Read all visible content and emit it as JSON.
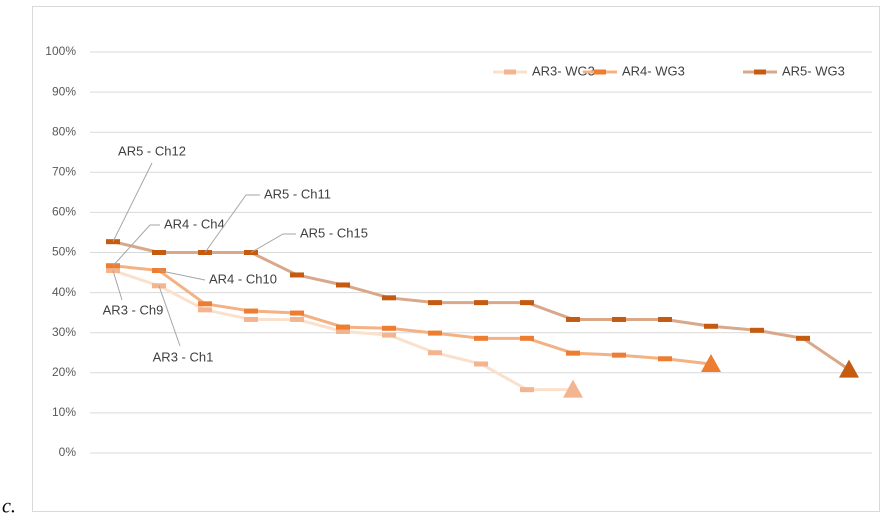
{
  "figure_label": "c.",
  "chart_data": {
    "type": "line",
    "categories": [
      null,
      null,
      null,
      null,
      null,
      null,
      null,
      null,
      null,
      null,
      null,
      null,
      null,
      null,
      null,
      null,
      null
    ],
    "series": [
      {
        "name": "AR3- WG3",
        "color": "#fbe0cc",
        "marker_color": "#f2b590",
        "values": [
          45.5,
          41.7,
          35.7,
          33.3,
          33.3,
          30.3,
          29.4,
          25,
          22.2,
          15.8,
          15.8,
          null,
          null,
          null,
          null,
          null,
          null
        ]
      },
      {
        "name": "AR4- WG3",
        "color": "#f4b183",
        "marker_color": "#ed7d31",
        "values": [
          46.7,
          45.5,
          37.2,
          35.4,
          34.9,
          31.4,
          31.1,
          29.9,
          28.6,
          28.6,
          24.9,
          24.4,
          23.5,
          22.2,
          null,
          null,
          null
        ]
      },
      {
        "name": "AR5- WG3",
        "color": "#d9a88b",
        "marker_color": "#c55a11",
        "values": [
          52.7,
          50,
          50,
          50,
          44.4,
          41.9,
          38.7,
          37.5,
          37.5,
          37.5,
          33.3,
          33.3,
          33.3,
          31.6,
          30.6,
          28.6,
          20.8
        ]
      }
    ],
    "ylim": [
      0,
      100
    ],
    "yticks": [
      {
        "value": 0,
        "label": "0%"
      },
      {
        "value": 10,
        "label": "10%"
      },
      {
        "value": 20,
        "label": "20%"
      },
      {
        "value": 30,
        "label": "30%"
      },
      {
        "value": 40,
        "label": "40%"
      },
      {
        "value": 50,
        "label": "50%"
      },
      {
        "value": 60,
        "label": "60%"
      },
      {
        "value": 70,
        "label": "70%"
      },
      {
        "value": 80,
        "label": "80%"
      },
      {
        "value": 90,
        "label": "90%"
      },
      {
        "value": 100,
        "label": "100%"
      }
    ],
    "grid": true,
    "legend": "top-right",
    "annotations": [
      "AR5 - Ch12",
      "AR4 - Ch4",
      "AR5 - Ch11",
      "AR5 - Ch15",
      "AR4 - Ch10",
      "AR3 - Ch9",
      "AR3 - Ch1"
    ]
  }
}
